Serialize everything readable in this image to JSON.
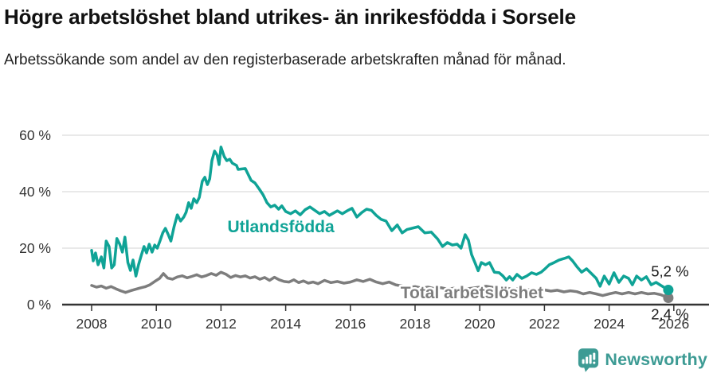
{
  "header": {
    "title": "Högre arbetslöshet bland utrikes- än inrikesfödda i Sorsele",
    "subtitle": "Arbetssökande som andel av den registerbaserade arbetskraften månad för månad."
  },
  "colors": {
    "foreign_born": "#0fa396",
    "total": "#7d7d7d",
    "axis": "#333333",
    "gridline": "#dcdcdc",
    "end_label_text": "#1a1a1a",
    "brand": "#3d9b94"
  },
  "chart_data": {
    "type": "line",
    "title": "Högre arbetslöshet bland utrikes- än inrikesfödda i Sorsele",
    "subtitle": "Arbetssökande som andel av den registerbaserade arbetskraften månad för månad.",
    "xlabel": "",
    "ylabel": "",
    "grid": true,
    "legend_position": "inline-labels",
    "xlim": [
      2007.1,
      2027.1
    ],
    "ylim": [
      0,
      62
    ],
    "x_ticks": [
      2008,
      2010,
      2012,
      2014,
      2016,
      2018,
      2020,
      2022,
      2024,
      2026
    ],
    "x_tick_labels": [
      "2008",
      "2010",
      "2012",
      "2014",
      "2016",
      "2018",
      "2020",
      "2022",
      "2024",
      "2026"
    ],
    "y_ticks": [
      0,
      20,
      40,
      60
    ],
    "y_tick_labels": [
      "0 %",
      "20 %",
      "40 %",
      "60 %"
    ],
    "series": [
      {
        "name": "Utlandsfödda",
        "color_key": "foreign_born",
        "end_value": 5.2,
        "end_label": "5,2 %",
        "end_label_side": "above",
        "points": [
          [
            2008.0,
            19.2
          ],
          [
            2008.05,
            15.5
          ],
          [
            2008.12,
            18.3
          ],
          [
            2008.2,
            14.1
          ],
          [
            2008.3,
            16.9
          ],
          [
            2008.38,
            13.0
          ],
          [
            2008.45,
            22.5
          ],
          [
            2008.54,
            20.6
          ],
          [
            2008.62,
            13.0
          ],
          [
            2008.7,
            14.1
          ],
          [
            2008.78,
            23.4
          ],
          [
            2008.87,
            21.4
          ],
          [
            2008.95,
            18.6
          ],
          [
            2009.03,
            23.9
          ],
          [
            2009.12,
            14.9
          ],
          [
            2009.2,
            12.1
          ],
          [
            2009.28,
            15.8
          ],
          [
            2009.37,
            10.1
          ],
          [
            2009.45,
            14.1
          ],
          [
            2009.53,
            17.2
          ],
          [
            2009.62,
            20.6
          ],
          [
            2009.7,
            18.3
          ],
          [
            2009.78,
            21.4
          ],
          [
            2009.87,
            18.6
          ],
          [
            2009.95,
            21.1
          ],
          [
            2010.03,
            20.0
          ],
          [
            2010.12,
            22.8
          ],
          [
            2010.2,
            25.4
          ],
          [
            2010.28,
            27.0
          ],
          [
            2010.37,
            24.8
          ],
          [
            2010.45,
            22.5
          ],
          [
            2010.55,
            27.6
          ],
          [
            2010.65,
            31.8
          ],
          [
            2010.75,
            29.6
          ],
          [
            2010.85,
            31.0
          ],
          [
            2010.92,
            32.7
          ],
          [
            2011.0,
            36.1
          ],
          [
            2011.08,
            34.1
          ],
          [
            2011.16,
            37.5
          ],
          [
            2011.25,
            36.1
          ],
          [
            2011.33,
            38.0
          ],
          [
            2011.42,
            43.7
          ],
          [
            2011.5,
            45.1
          ],
          [
            2011.58,
            42.5
          ],
          [
            2011.65,
            44.5
          ],
          [
            2011.72,
            51.0
          ],
          [
            2011.8,
            54.4
          ],
          [
            2011.88,
            53.0
          ],
          [
            2011.94,
            49.6
          ],
          [
            2012.0,
            55.8
          ],
          [
            2012.1,
            52.4
          ],
          [
            2012.18,
            51.0
          ],
          [
            2012.27,
            51.5
          ],
          [
            2012.35,
            50.1
          ],
          [
            2012.48,
            49.3
          ],
          [
            2012.53,
            47.9
          ],
          [
            2012.75,
            48.2
          ],
          [
            2012.93,
            44.0
          ],
          [
            2013.05,
            43.1
          ],
          [
            2013.18,
            41.0
          ],
          [
            2013.3,
            38.9
          ],
          [
            2013.42,
            36.1
          ],
          [
            2013.54,
            34.6
          ],
          [
            2013.66,
            35.2
          ],
          [
            2013.78,
            33.8
          ],
          [
            2013.88,
            35.0
          ],
          [
            2014.0,
            33.0
          ],
          [
            2014.15,
            32.2
          ],
          [
            2014.3,
            33.2
          ],
          [
            2014.45,
            31.8
          ],
          [
            2014.6,
            33.6
          ],
          [
            2014.75,
            34.6
          ],
          [
            2014.9,
            33.4
          ],
          [
            2015.05,
            32.2
          ],
          [
            2015.2,
            33.0
          ],
          [
            2015.35,
            31.6
          ],
          [
            2015.5,
            32.6
          ],
          [
            2015.6,
            33.2
          ],
          [
            2015.75,
            32.2
          ],
          [
            2015.9,
            33.2
          ],
          [
            2016.05,
            34.1
          ],
          [
            2016.2,
            31.0
          ],
          [
            2016.35,
            32.6
          ],
          [
            2016.5,
            33.8
          ],
          [
            2016.65,
            33.4
          ],
          [
            2016.8,
            31.6
          ],
          [
            2016.95,
            30.2
          ],
          [
            2017.1,
            29.6
          ],
          [
            2017.28,
            26.2
          ],
          [
            2017.45,
            28.2
          ],
          [
            2017.6,
            25.4
          ],
          [
            2017.75,
            26.6
          ],
          [
            2017.9,
            27.0
          ],
          [
            2018.1,
            27.6
          ],
          [
            2018.3,
            25.4
          ],
          [
            2018.5,
            25.7
          ],
          [
            2018.7,
            23.2
          ],
          [
            2018.85,
            20.6
          ],
          [
            2019.0,
            22.0
          ],
          [
            2019.15,
            21.1
          ],
          [
            2019.3,
            21.4
          ],
          [
            2019.42,
            20.0
          ],
          [
            2019.55,
            24.8
          ],
          [
            2019.65,
            22.8
          ],
          [
            2019.75,
            17.7
          ],
          [
            2019.85,
            14.9
          ],
          [
            2019.95,
            12.0
          ],
          [
            2020.05,
            14.9
          ],
          [
            2020.18,
            14.1
          ],
          [
            2020.3,
            14.9
          ],
          [
            2020.45,
            11.5
          ],
          [
            2020.6,
            11.3
          ],
          [
            2020.72,
            10.1
          ],
          [
            2020.82,
            8.7
          ],
          [
            2020.92,
            9.9
          ],
          [
            2021.02,
            8.7
          ],
          [
            2021.15,
            10.7
          ],
          [
            2021.3,
            9.3
          ],
          [
            2021.45,
            10.1
          ],
          [
            2021.6,
            11.3
          ],
          [
            2021.75,
            10.7
          ],
          [
            2021.9,
            11.5
          ],
          [
            2022.02,
            12.7
          ],
          [
            2022.15,
            14.1
          ],
          [
            2022.3,
            14.9
          ],
          [
            2022.45,
            15.8
          ],
          [
            2022.6,
            16.3
          ],
          [
            2022.75,
            16.9
          ],
          [
            2022.87,
            15.5
          ],
          [
            2023.0,
            13.5
          ],
          [
            2023.15,
            11.5
          ],
          [
            2023.3,
            12.7
          ],
          [
            2023.45,
            11.0
          ],
          [
            2023.6,
            9.3
          ],
          [
            2023.72,
            6.5
          ],
          [
            2023.85,
            10.1
          ],
          [
            2024.0,
            7.3
          ],
          [
            2024.15,
            11.3
          ],
          [
            2024.3,
            7.9
          ],
          [
            2024.45,
            10.1
          ],
          [
            2024.6,
            9.3
          ],
          [
            2024.72,
            7.0
          ],
          [
            2024.85,
            10.1
          ],
          [
            2025.0,
            8.7
          ],
          [
            2025.15,
            9.9
          ],
          [
            2025.3,
            7.0
          ],
          [
            2025.45,
            7.9
          ],
          [
            2025.6,
            6.8
          ],
          [
            2025.83,
            5.2
          ]
        ]
      },
      {
        "name": "Total arbetslöshet",
        "color_key": "total",
        "end_value": 2.4,
        "end_label": "2,4 %",
        "end_label_side": "below",
        "points": [
          [
            2008.0,
            6.8
          ],
          [
            2008.15,
            6.2
          ],
          [
            2008.3,
            6.6
          ],
          [
            2008.45,
            5.8
          ],
          [
            2008.6,
            6.4
          ],
          [
            2008.75,
            5.6
          ],
          [
            2008.9,
            4.9
          ],
          [
            2009.05,
            4.3
          ],
          [
            2009.2,
            4.9
          ],
          [
            2009.35,
            5.4
          ],
          [
            2009.5,
            5.9
          ],
          [
            2009.65,
            6.3
          ],
          [
            2009.8,
            7.0
          ],
          [
            2009.95,
            8.2
          ],
          [
            2010.1,
            9.3
          ],
          [
            2010.22,
            11.0
          ],
          [
            2010.35,
            9.4
          ],
          [
            2010.5,
            9.0
          ],
          [
            2010.65,
            9.8
          ],
          [
            2010.8,
            10.2
          ],
          [
            2010.95,
            9.5
          ],
          [
            2011.1,
            10.0
          ],
          [
            2011.25,
            10.6
          ],
          [
            2011.4,
            9.8
          ],
          [
            2011.55,
            10.3
          ],
          [
            2011.7,
            11.0
          ],
          [
            2011.85,
            10.4
          ],
          [
            2012.0,
            11.5
          ],
          [
            2012.15,
            10.8
          ],
          [
            2012.3,
            9.6
          ],
          [
            2012.45,
            10.3
          ],
          [
            2012.6,
            9.8
          ],
          [
            2012.75,
            10.2
          ],
          [
            2012.9,
            9.4
          ],
          [
            2013.05,
            9.9
          ],
          [
            2013.2,
            9.0
          ],
          [
            2013.35,
            9.6
          ],
          [
            2013.5,
            8.6
          ],
          [
            2013.65,
            9.7
          ],
          [
            2013.8,
            8.8
          ],
          [
            2013.95,
            8.2
          ],
          [
            2014.1,
            8.0
          ],
          [
            2014.25,
            8.8
          ],
          [
            2014.4,
            7.8
          ],
          [
            2014.55,
            8.4
          ],
          [
            2014.7,
            7.6
          ],
          [
            2014.85,
            8.0
          ],
          [
            2015.0,
            7.4
          ],
          [
            2015.2,
            8.6
          ],
          [
            2015.4,
            7.8
          ],
          [
            2015.6,
            8.2
          ],
          [
            2015.8,
            7.6
          ],
          [
            2016.0,
            8.0
          ],
          [
            2016.2,
            8.8
          ],
          [
            2016.4,
            8.2
          ],
          [
            2016.6,
            9.0
          ],
          [
            2016.8,
            8.0
          ],
          [
            2017.0,
            7.4
          ],
          [
            2017.2,
            8.0
          ],
          [
            2017.4,
            7.0
          ],
          [
            2017.6,
            6.6
          ],
          [
            2017.8,
            6.1
          ],
          [
            2018.0,
            6.4
          ],
          [
            2018.2,
            5.9
          ],
          [
            2018.4,
            6.2
          ],
          [
            2018.6,
            5.7
          ],
          [
            2018.8,
            6.0
          ],
          [
            2019.0,
            5.5
          ],
          [
            2019.2,
            5.8
          ],
          [
            2019.4,
            5.3
          ],
          [
            2019.6,
            5.6
          ],
          [
            2019.8,
            5.9
          ],
          [
            2020.0,
            6.2
          ],
          [
            2020.2,
            6.5
          ],
          [
            2020.4,
            6.1
          ],
          [
            2020.6,
            5.7
          ],
          [
            2020.8,
            6.0
          ],
          [
            2021.0,
            5.4
          ],
          [
            2021.2,
            5.7
          ],
          [
            2021.4,
            5.1
          ],
          [
            2021.6,
            5.4
          ],
          [
            2021.8,
            4.9
          ],
          [
            2022.0,
            5.2
          ],
          [
            2022.2,
            4.8
          ],
          [
            2022.4,
            5.1
          ],
          [
            2022.6,
            4.5
          ],
          [
            2022.8,
            4.9
          ],
          [
            2023.0,
            4.6
          ],
          [
            2023.2,
            3.8
          ],
          [
            2023.4,
            4.3
          ],
          [
            2023.6,
            3.8
          ],
          [
            2023.8,
            3.2
          ],
          [
            2024.0,
            3.8
          ],
          [
            2024.2,
            4.3
          ],
          [
            2024.4,
            3.8
          ],
          [
            2024.6,
            4.3
          ],
          [
            2024.8,
            3.8
          ],
          [
            2025.0,
            4.3
          ],
          [
            2025.2,
            3.8
          ],
          [
            2025.4,
            4.0
          ],
          [
            2025.6,
            3.5
          ],
          [
            2025.83,
            2.4
          ]
        ]
      }
    ],
    "series_labels": [
      {
        "text": "Utlandsfödda",
        "x": 2012.2,
        "y": 25.6,
        "color_key": "foreign_born"
      },
      {
        "text": "Total arbetslöshet",
        "x": 2017.55,
        "y": 2.3,
        "color_key": "total"
      }
    ]
  },
  "footer": {
    "brand_name": "Newsworthy"
  }
}
